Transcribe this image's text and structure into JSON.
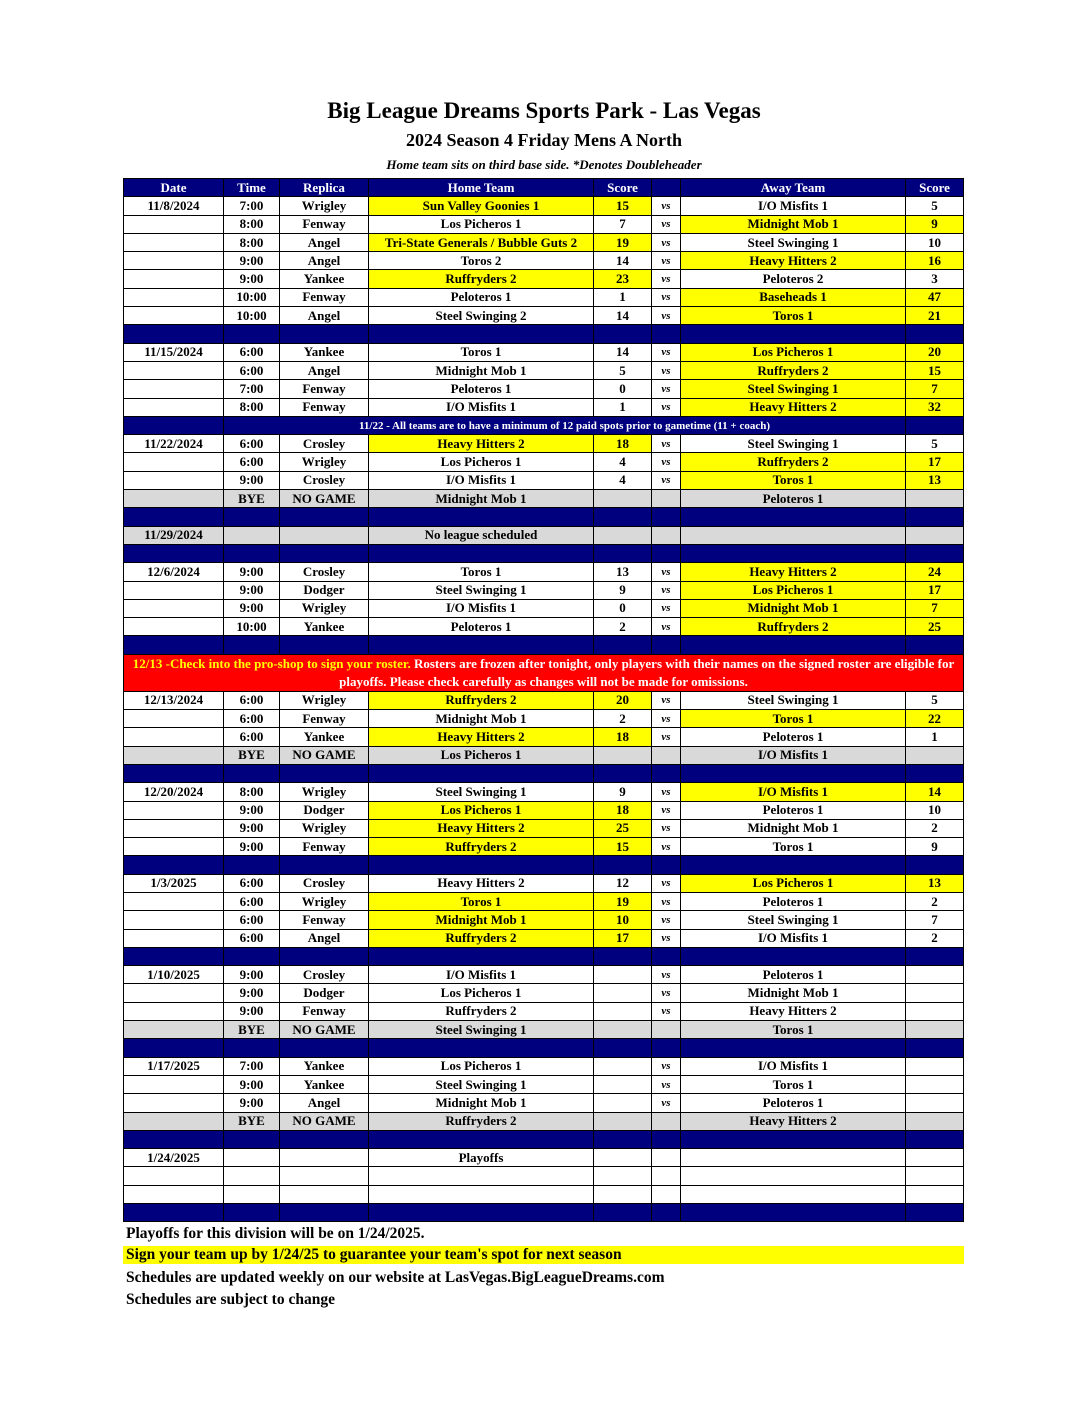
{
  "title": "Big League Dreams Sports Park - Las Vegas",
  "subtitle": "2024 Season 4 Friday Mens A North",
  "note": "Home team sits on third base side.  *Denotes Doubleheader",
  "headers": [
    "Date",
    "Time",
    "Replica",
    "Home Team",
    "Score",
    "",
    "Away Team",
    "Score"
  ],
  "vs_label": "vs",
  "highlight_color": "#ffff00",
  "header_color": "#00007f",
  "notice_color": "#ff0000",
  "rows": [
    {
      "type": "game",
      "date": "11/8/2024",
      "time": "7:00",
      "replica": "Wrigley",
      "home": "Sun Valley Goonies 1",
      "hs": "15",
      "away": "I/O Misfits 1",
      "as": "5",
      "winner": "home"
    },
    {
      "type": "game",
      "date": "",
      "time": "8:00",
      "replica": "Fenway",
      "home": "Los Picheros 1",
      "hs": "7",
      "away": "Midnight Mob 1",
      "as": "9",
      "winner": "away"
    },
    {
      "type": "game",
      "date": "",
      "time": "8:00",
      "replica": "Angel",
      "home": "Tri-State Generals / Bubble Guts 2",
      "hs": "19",
      "away": "Steel Swinging 1",
      "as": "10",
      "winner": "home"
    },
    {
      "type": "game",
      "date": "",
      "time": "9:00",
      "replica": "Angel",
      "home": "Toros 2",
      "hs": "14",
      "away": "Heavy Hitters 2",
      "as": "16",
      "winner": "away"
    },
    {
      "type": "game",
      "date": "",
      "time": "9:00",
      "replica": "Yankee",
      "home": "Ruffryders 2",
      "hs": "23",
      "away": "Peloteros 2",
      "as": "3",
      "winner": "home"
    },
    {
      "type": "game",
      "date": "",
      "time": "10:00",
      "replica": "Fenway",
      "home": "Peloteros 1",
      "hs": "1",
      "away": "Baseheads 1",
      "as": "47",
      "winner": "away"
    },
    {
      "type": "game",
      "date": "",
      "time": "10:00",
      "replica": "Angel",
      "home": "Steel Swinging 2",
      "hs": "14",
      "away": "Toros 1",
      "as": "21",
      "winner": "away"
    },
    {
      "type": "spacer"
    },
    {
      "type": "game",
      "date": "11/15/2024",
      "time": "6:00",
      "replica": "Yankee",
      "home": "Toros 1",
      "hs": "14",
      "away": "Los Picheros 1",
      "as": "20",
      "winner": "away"
    },
    {
      "type": "game",
      "date": "",
      "time": "6:00",
      "replica": "Angel",
      "home": "Midnight Mob 1",
      "hs": "5",
      "away": "Ruffryders 2",
      "as": "15",
      "winner": "away"
    },
    {
      "type": "game",
      "date": "",
      "time": "7:00",
      "replica": "Fenway",
      "home": "Peloteros 1",
      "hs": "0",
      "away": "Steel Swinging 1",
      "as": "7",
      "winner": "away"
    },
    {
      "type": "game",
      "date": "",
      "time": "8:00",
      "replica": "Fenway",
      "home": "I/O Misfits 1",
      "hs": "1",
      "away": "Heavy Hitters 2",
      "as": "32",
      "winner": "away"
    },
    {
      "type": "notice",
      "text": "11/22 - All teams are to have a minimum of 12 paid spots prior to gametime (11 + coach)"
    },
    {
      "type": "game",
      "date": "11/22/2024",
      "time": "6:00",
      "replica": "Crosley",
      "home": "Heavy Hitters 2",
      "hs": "18",
      "away": "Steel Swinging 1",
      "as": "5",
      "winner": "home"
    },
    {
      "type": "game",
      "date": "",
      "time": "6:00",
      "replica": "Wrigley",
      "home": "Los Picheros 1",
      "hs": "4",
      "away": "Ruffryders 2",
      "as": "17",
      "winner": "away"
    },
    {
      "type": "game",
      "date": "",
      "time": "9:00",
      "replica": "Crosley",
      "home": "I/O Misfits 1",
      "hs": "4",
      "away": "Toros 1",
      "as": "13",
      "winner": "away"
    },
    {
      "type": "bye",
      "time": "BYE",
      "replica": "NO GAME",
      "home": "Midnight Mob 1",
      "away": "Peloteros 1"
    },
    {
      "type": "spacer"
    },
    {
      "type": "none",
      "date": "11/29/2024",
      "home": "No league scheduled"
    },
    {
      "type": "spacer"
    },
    {
      "type": "game",
      "date": "12/6/2024",
      "time": "9:00",
      "replica": "Crosley",
      "home": "Toros 1",
      "hs": "13",
      "away": "Heavy Hitters 2",
      "as": "24",
      "winner": "away"
    },
    {
      "type": "game",
      "date": "",
      "time": "9:00",
      "replica": "Dodger",
      "home": "Steel Swinging 1",
      "hs": "9",
      "away": "Los Picheros 1",
      "as": "17",
      "winner": "away"
    },
    {
      "type": "game",
      "date": "",
      "time": "9:00",
      "replica": "Wrigley",
      "home": "I/O Misfits 1",
      "hs": "0",
      "away": "Midnight Mob 1",
      "as": "7",
      "winner": "away"
    },
    {
      "type": "game",
      "date": "",
      "time": "10:00",
      "replica": "Yankee",
      "home": "Peloteros 1",
      "hs": "2",
      "away": "Ruffryders 2",
      "as": "25",
      "winner": "away"
    },
    {
      "type": "spacer"
    },
    {
      "type": "alert",
      "highlight": "12/13 -Check into the pro-shop to sign your roster.",
      "text": " Rosters are frozen after tonight, only players with their names on the signed roster are eligible for playoffs. Please check carefully as changes will not be made for omissions."
    },
    {
      "type": "game",
      "date": "12/13/2024",
      "time": "6:00",
      "replica": "Wrigley",
      "home": "Ruffryders 2",
      "hs": "20",
      "away": "Steel Swinging 1",
      "as": "5",
      "winner": "home"
    },
    {
      "type": "game",
      "date": "",
      "time": "6:00",
      "replica": "Fenway",
      "home": "Midnight Mob 1",
      "hs": "2",
      "away": "Toros 1",
      "as": "22",
      "winner": "away"
    },
    {
      "type": "game",
      "date": "",
      "time": "6:00",
      "replica": "Yankee",
      "home": "Heavy Hitters 2",
      "hs": "18",
      "away": "Peloteros 1",
      "as": "1",
      "winner": "home"
    },
    {
      "type": "bye",
      "time": "BYE",
      "replica": "NO GAME",
      "home": "Los Picheros 1",
      "away": "I/O Misfits 1"
    },
    {
      "type": "spacer"
    },
    {
      "type": "game",
      "date": "12/20/2024",
      "time": "8:00",
      "replica": "Wrigley",
      "home": "Steel Swinging 1",
      "hs": "9",
      "away": "I/O Misfits 1",
      "as": "14",
      "winner": "away"
    },
    {
      "type": "game",
      "date": "",
      "time": "9:00",
      "replica": "Dodger",
      "home": "Los Picheros 1",
      "hs": "18",
      "away": "Peloteros 1",
      "as": "10",
      "winner": "home"
    },
    {
      "type": "game",
      "date": "",
      "time": "9:00",
      "replica": "Wrigley",
      "home": "Heavy Hitters 2",
      "hs": "25",
      "away": "Midnight Mob 1",
      "as": "2",
      "winner": "home"
    },
    {
      "type": "game",
      "date": "",
      "time": "9:00",
      "replica": "Fenway",
      "home": "Ruffryders 2",
      "hs": "15",
      "away": "Toros 1",
      "as": "9",
      "winner": "home"
    },
    {
      "type": "spacer"
    },
    {
      "type": "game",
      "date": "1/3/2025",
      "time": "6:00",
      "replica": "Crosley",
      "home": "Heavy Hitters 2",
      "hs": "12",
      "away": "Los Picheros 1",
      "as": "13",
      "winner": "away"
    },
    {
      "type": "game",
      "date": "",
      "time": "6:00",
      "replica": "Wrigley",
      "home": "Toros 1",
      "hs": "19",
      "away": "Peloteros 1",
      "as": "2",
      "winner": "home"
    },
    {
      "type": "game",
      "date": "",
      "time": "6:00",
      "replica": "Fenway",
      "home": "Midnight Mob 1",
      "hs": "10",
      "away": "Steel Swinging 1",
      "as": "7",
      "winner": "home"
    },
    {
      "type": "game",
      "date": "",
      "time": "6:00",
      "replica": "Angel",
      "home": "Ruffryders 2",
      "hs": "17",
      "away": "I/O Misfits 1",
      "as": "2",
      "winner": "home"
    },
    {
      "type": "spacer"
    },
    {
      "type": "game",
      "date": "1/10/2025",
      "time": "9:00",
      "replica": "Crosley",
      "home": "I/O Misfits 1",
      "hs": "",
      "away": "Peloteros 1",
      "as": ""
    },
    {
      "type": "game",
      "date": "",
      "time": "9:00",
      "replica": "Dodger",
      "home": "Los Picheros 1",
      "hs": "",
      "away": "Midnight Mob 1",
      "as": ""
    },
    {
      "type": "game",
      "date": "",
      "time": "9:00",
      "replica": "Fenway",
      "home": "Ruffryders 2",
      "hs": "",
      "away": "Heavy Hitters 2",
      "as": ""
    },
    {
      "type": "bye",
      "time": "BYE",
      "replica": "NO GAME",
      "home": "Steel Swinging 1",
      "away": "Toros 1"
    },
    {
      "type": "spacer"
    },
    {
      "type": "game",
      "date": "1/17/2025",
      "time": "7:00",
      "replica": "Yankee",
      "home": "Los Picheros 1",
      "hs": "",
      "away": "I/O Misfits 1",
      "as": ""
    },
    {
      "type": "game",
      "date": "",
      "time": "9:00",
      "replica": "Yankee",
      "home": "Steel Swinging 1",
      "hs": "",
      "away": "Toros 1",
      "as": ""
    },
    {
      "type": "game",
      "date": "",
      "time": "9:00",
      "replica": "Angel",
      "home": "Midnight Mob 1",
      "hs": "",
      "away": "Peloteros 1",
      "as": ""
    },
    {
      "type": "bye",
      "time": "BYE",
      "replica": "NO GAME",
      "home": "Ruffryders 2",
      "away": "Heavy Hitters 2"
    },
    {
      "type": "spacer"
    },
    {
      "type": "empty",
      "date": "1/24/2025",
      "home": "Playoffs"
    },
    {
      "type": "empty"
    },
    {
      "type": "empty"
    },
    {
      "type": "spacer"
    }
  ],
  "footer": {
    "line1": "Playoffs for this division will be on 1/24/2025.",
    "line2": "Sign your team up by 1/24/25 to guarantee your team's spot for next season",
    "line3": "Schedules are updated weekly on our website at LasVegas.BigLeagueDreams.com",
    "line4": "Schedules are subject to change"
  }
}
